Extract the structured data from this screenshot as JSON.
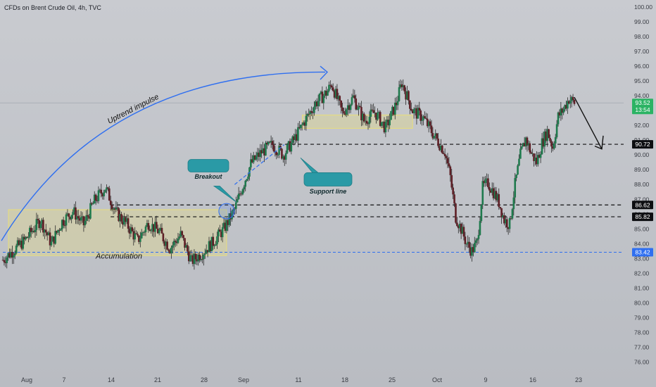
{
  "header": {
    "title": "CFDs on Brent Crude Oil, 4h, TVC"
  },
  "colors": {
    "background": "#c3c5ca",
    "up": "#1f7a4d",
    "down": "#5e1f26",
    "wick": "#2a2a2a",
    "blue": "#2f6ff0",
    "zone_fill": "#d9d49b",
    "zone_stroke": "#e8de7a",
    "callout": "#2a9aa6",
    "price_tag_green": "#2bb364"
  },
  "chart_data": {
    "type": "candlestick",
    "title": "CFDs on Brent Crude Oil, 4h, TVC",
    "y_axis": {
      "range": [
        75.5,
        100.0
      ],
      "ticks": [
        "100.00",
        "99.00",
        "98.00",
        "97.00",
        "96.00",
        "95.00",
        "94.00",
        "93.00",
        "92.00",
        "91.00",
        "90.00",
        "89.00",
        "88.00",
        "87.00",
        "86.00",
        "85.00",
        "84.00",
        "83.00",
        "82.00",
        "81.00",
        "80.00",
        "79.00",
        "78.00",
        "77.00",
        "76.00"
      ]
    },
    "x_axis": {
      "tick_labels": [
        "Aug",
        "7",
        "14",
        "21",
        "28",
        "Sep",
        "11",
        "18",
        "25",
        "Oct",
        "9",
        "16",
        "23"
      ]
    },
    "price_path": [
      [
        0,
        82.9
      ],
      [
        4,
        84.2
      ],
      [
        7,
        85.6
      ],
      [
        9,
        84.0
      ],
      [
        11,
        85.5
      ],
      [
        13,
        86.2
      ],
      [
        15,
        85.3
      ],
      [
        17,
        86.9
      ],
      [
        19,
        87.8
      ],
      [
        21,
        86.1
      ],
      [
        23,
        85.3
      ],
      [
        25,
        84.2
      ],
      [
        27,
        85.4
      ],
      [
        29,
        84.8
      ],
      [
        31,
        83.7
      ],
      [
        33,
        84.6
      ],
      [
        35,
        82.8
      ],
      [
        37,
        83.4
      ],
      [
        39,
        84.1
      ],
      [
        41,
        85.0
      ],
      [
        43,
        86.3
      ],
      [
        44,
        87.4
      ],
      [
        46,
        89.4
      ],
      [
        48,
        90.2
      ],
      [
        50,
        90.7
      ],
      [
        52,
        90.0
      ],
      [
        54,
        91.0
      ],
      [
        56,
        92.3
      ],
      [
        58,
        93.5
      ],
      [
        60,
        94.2
      ],
      [
        61,
        94.8
      ],
      [
        63,
        92.8
      ],
      [
        65,
        93.9
      ],
      [
        67,
        92.3
      ],
      [
        69,
        92.9
      ],
      [
        71,
        91.8
      ],
      [
        73,
        93.5
      ],
      [
        74,
        94.9
      ],
      [
        76,
        93.0
      ],
      [
        78,
        92.5
      ],
      [
        80,
        91.3
      ],
      [
        82,
        90.2
      ],
      [
        83,
        88.5
      ],
      [
        84,
        85.8
      ],
      [
        85,
        85.0
      ],
      [
        86,
        84.0
      ],
      [
        87,
        83.5
      ],
      [
        88,
        84.1
      ],
      [
        89,
        87.8
      ],
      [
        90,
        88.1
      ],
      [
        91,
        87.5
      ],
      [
        92,
        86.8
      ],
      [
        93,
        85.6
      ],
      [
        94,
        85.3
      ],
      [
        95,
        88.0
      ],
      [
        96,
        90.0
      ],
      [
        97,
        91.1
      ],
      [
        98,
        90.1
      ],
      [
        99,
        89.5
      ],
      [
        100,
        90.8
      ],
      [
        101,
        91.6
      ],
      [
        102,
        90.5
      ],
      [
        103,
        92.6
      ],
      [
        104,
        93.1
      ],
      [
        105,
        93.8
      ],
      [
        106,
        93.52
      ]
    ],
    "levels": [
      {
        "label": "86.62",
        "value": 86.62,
        "style": "dashed-black"
      },
      {
        "label": "85.82",
        "value": 85.82,
        "style": "dashed-black"
      },
      {
        "label": "83.42",
        "value": 83.42,
        "style": "dashed-blue"
      },
      {
        "label": "90.72",
        "value": 90.72,
        "style": "dashed-black"
      }
    ],
    "current_price": {
      "value": 93.52,
      "label": "93.52",
      "countdown": "13:54"
    },
    "zones": [
      {
        "name": "accumulation-zone",
        "y_top": 86.3,
        "y_bottom": 83.2
      },
      {
        "name": "resistance-zone",
        "y_top": 92.7,
        "y_bottom": 91.8
      }
    ],
    "annotations": {
      "uptrend": "Uptrend impulse",
      "accumulation": "Accumulation",
      "breakout": "Breakout",
      "support_line": "Support line"
    },
    "grid": false,
    "legend": "none"
  }
}
